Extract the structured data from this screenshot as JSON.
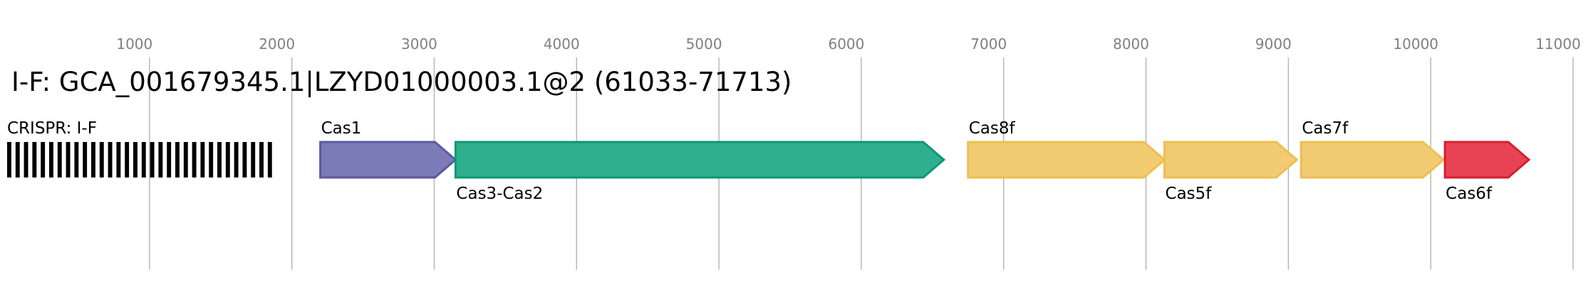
{
  "chart_data": {
    "type": "gene-map",
    "title": "I-F: GCA_001679345.1|LZYD01000003.1@2 (61033-71713)",
    "xlim": [
      0,
      11140
    ],
    "xticks": [
      1000,
      2000,
      3000,
      4000,
      5000,
      6000,
      7000,
      8000,
      9000,
      10000,
      11000
    ],
    "grid": true,
    "crispr": {
      "label": "CRISPR: I-F",
      "start": 0,
      "end": 1890,
      "color": "#000000"
    },
    "genes": [
      {
        "name": "Cas1",
        "start": 2200,
        "end": 3150,
        "color": "#7b7bb8",
        "stroke": "#5a5a9e"
      },
      {
        "name": "Cas3-Cas2",
        "start": 3150,
        "end": 6580,
        "color": "#2eb08f",
        "stroke": "#0e9673"
      },
      {
        "name": "Cas8f",
        "start": 6750,
        "end": 8130,
        "color": "#f2cb72",
        "stroke": "#eebf4d"
      },
      {
        "name": "Cas5f",
        "start": 8130,
        "end": 9060,
        "color": "#f2cb72",
        "stroke": "#eebf4d"
      },
      {
        "name": "Cas7f",
        "start": 9090,
        "end": 10090,
        "color": "#f2cb72",
        "stroke": "#eebf4d"
      },
      {
        "name": "Cas6f",
        "start": 10100,
        "end": 10690,
        "color": "#e84353",
        "stroke": "#d41f30"
      }
    ]
  }
}
